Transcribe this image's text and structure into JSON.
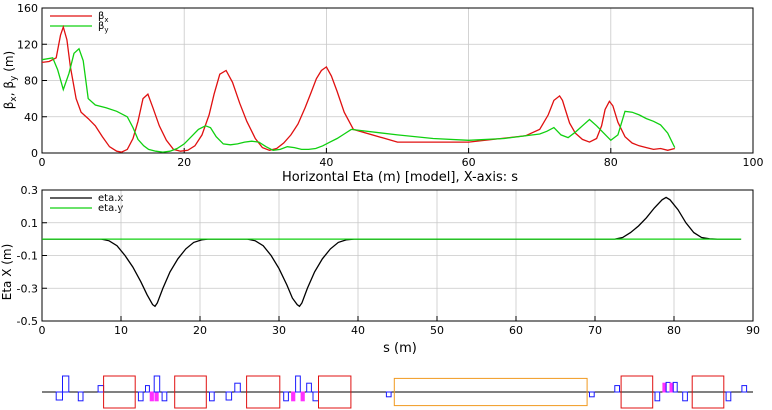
{
  "chart_data": [
    {
      "type": "line",
      "title": "",
      "xlabel": "",
      "ylabel": "βx, βy (m)",
      "ylabel_parts": [
        "β",
        "x",
        ", β",
        "y",
        "  (m)"
      ],
      "xlim": [
        0,
        100
      ],
      "ylim": [
        0,
        160
      ],
      "xticks": [
        0,
        20,
        40,
        60,
        80,
        100
      ],
      "yticks": [
        0,
        40,
        80,
        120,
        160
      ],
      "grid": true,
      "legend": "top-left",
      "series": [
        {
          "name": "βx",
          "name_parts": [
            "β",
            "x"
          ],
          "color": "#e01010",
          "x": [
            0,
            1,
            2,
            2.6,
            3,
            3.5,
            4,
            4.8,
            5.5,
            6.5,
            7.5,
            8.5,
            9.5,
            10.5,
            11.2,
            12,
            12.8,
            13.5,
            14.2,
            14.9,
            15.6,
            16.5,
            17.5,
            18.5,
            19.5,
            20.5,
            21.5,
            22.5,
            23.5,
            24.2,
            25,
            25.9,
            26.8,
            27.8,
            28.8,
            30,
            31,
            32,
            33,
            34,
            35,
            36,
            37,
            37.8,
            38.6,
            39.3,
            40,
            40.7,
            41.5,
            42.5,
            43.8,
            50,
            60,
            68,
            70,
            71.2,
            72,
            72.8,
            73.2,
            73.6,
            74.2,
            75,
            76,
            77,
            78,
            78.7,
            79.2,
            79.8,
            80.3,
            81,
            82,
            83,
            84,
            85,
            86,
            87,
            88,
            89
          ],
          "y": [
            100,
            101,
            105,
            130,
            139,
            125,
            95,
            60,
            45,
            38,
            30,
            18,
            7,
            2,
            1,
            4,
            16,
            35,
            60,
            65,
            50,
            30,
            14,
            4,
            2,
            3,
            8,
            20,
            42,
            65,
            87,
            91,
            78,
            55,
            35,
            16,
            6,
            3,
            5,
            11,
            20,
            32,
            50,
            66,
            82,
            91,
            95,
            85,
            68,
            45,
            26,
            12,
            12,
            19,
            26,
            42,
            58,
            63,
            58,
            48,
            33,
            22,
            15,
            12,
            16,
            30,
            48,
            57,
            52,
            34,
            18,
            11,
            8,
            6,
            4,
            5,
            3,
            5
          ]
        },
        {
          "name": "βy",
          "name_parts": [
            "β",
            "y"
          ],
          "color": "#10d010",
          "x": [
            0,
            1.5,
            2.2,
            3,
            3.8,
            4.5,
            5.2,
            5.8,
            6.5,
            7.5,
            9,
            10.5,
            12,
            12.8,
            13.5,
            14.3,
            15,
            16,
            17,
            18,
            19,
            20,
            21,
            22,
            23,
            23.7,
            24.5,
            25.5,
            26.5,
            27.5,
            28.5,
            29.5,
            30.5,
            31.5,
            32.5,
            33.5,
            34.5,
            35.5,
            36.5,
            37.5,
            38.5,
            39.5,
            40.5,
            41.5,
            42.5,
            43.5,
            50,
            55,
            60,
            65,
            70,
            71,
            72,
            73,
            74,
            75,
            76,
            77,
            78,
            79,
            80,
            81,
            82,
            83,
            84,
            85,
            86,
            87,
            88,
            89
          ],
          "y": [
            103,
            105,
            92,
            70,
            88,
            110,
            115,
            102,
            60,
            53,
            50,
            46,
            40,
            28,
            15,
            8,
            4,
            2,
            1,
            2,
            5,
            10,
            18,
            26,
            30,
            28,
            18,
            10,
            9,
            10,
            12,
            13,
            12,
            7,
            3,
            4,
            7,
            6,
            4,
            4,
            5,
            8,
            12,
            16,
            21,
            26,
            20,
            16,
            14,
            16,
            21,
            24,
            28,
            20,
            17,
            23,
            30,
            37,
            30,
            22,
            14,
            20,
            46,
            45,
            42,
            38,
            35,
            31,
            22,
            6
          ]
        }
      ]
    },
    {
      "type": "line",
      "title": "Horizontal Eta (m) [model],  X-axis: s",
      "xlabel": "s  (m)",
      "ylabel": "Eta X  (m)",
      "xlim": [
        0,
        90
      ],
      "ylim": [
        -0.5,
        0.3
      ],
      "xticks": [
        0,
        10,
        20,
        30,
        40,
        50,
        60,
        70,
        80,
        90
      ],
      "yticks": [
        -0.5,
        -0.3,
        -0.1,
        0.1,
        0.3
      ],
      "ytick_labels": [
        "-0.5",
        "-0.3",
        "-0.1",
        "0.1",
        "0.3"
      ],
      "grid": true,
      "legend": "top-left",
      "series": [
        {
          "name": "eta.x",
          "color": "#000000",
          "x": [
            0,
            7.5,
            8.5,
            9.5,
            10.5,
            11.5,
            12.5,
            13.3,
            14,
            14.3,
            14.6,
            15.3,
            16.2,
            17.2,
            18.2,
            19.2,
            20.2,
            21,
            26,
            27,
            28,
            29,
            30,
            31,
            31.7,
            32.3,
            32.6,
            32.9,
            33.6,
            34.5,
            35.5,
            36.5,
            37.5,
            38.5,
            39.5,
            72.5,
            73.5,
            74.5,
            75.5,
            76.5,
            77.5,
            78.5,
            79,
            79.5,
            80.5,
            81.5,
            82.5,
            83.5,
            84.5,
            85.5,
            88.5
          ],
          "y": [
            0,
            0,
            -0.01,
            -0.04,
            -0.1,
            -0.17,
            -0.26,
            -0.34,
            -0.4,
            -0.41,
            -0.39,
            -0.3,
            -0.2,
            -0.12,
            -0.06,
            -0.02,
            -0.005,
            0,
            0,
            -0.01,
            -0.04,
            -0.1,
            -0.18,
            -0.28,
            -0.36,
            -0.4,
            -0.41,
            -0.39,
            -0.3,
            -0.2,
            -0.12,
            -0.06,
            -0.02,
            -0.005,
            0,
            0,
            0.01,
            0.04,
            0.08,
            0.13,
            0.19,
            0.24,
            0.255,
            0.24,
            0.18,
            0.1,
            0.04,
            0.01,
            0.002,
            0,
            0
          ]
        },
        {
          "name": "eta.y",
          "color": "#10d010",
          "x": [
            0,
            88.5
          ],
          "y": [
            0,
            0
          ]
        }
      ]
    }
  ],
  "lattice": {
    "s_max": 90,
    "elements": [
      {
        "kind": "quad",
        "s0": 1.8,
        "s1": 2.6,
        "dir": -1,
        "h": 0.5,
        "color": "#1a1aff"
      },
      {
        "kind": "quad",
        "s0": 2.6,
        "s1": 3.4,
        "dir": 1,
        "h": 1,
        "color": "#1a1aff"
      },
      {
        "kind": "quad",
        "s0": 4.6,
        "s1": 5.2,
        "dir": -1,
        "h": 0.55,
        "color": "#1a1aff"
      },
      {
        "kind": "quad",
        "s0": 7.1,
        "s1": 7.8,
        "dir": 1,
        "h": 0.4,
        "color": "#1a1aff"
      },
      {
        "kind": "bend",
        "s0": 7.8,
        "s1": 11.8,
        "dir": 0,
        "h": 1,
        "color": "#e01010"
      },
      {
        "kind": "quad",
        "s0": 12.2,
        "s1": 12.8,
        "dir": -1,
        "h": 0.55,
        "color": "#1a1aff"
      },
      {
        "kind": "quad",
        "s0": 13.1,
        "s1": 13.6,
        "dir": 1,
        "h": 0.4,
        "color": "#1a1aff"
      },
      {
        "kind": "sext",
        "s0": 13.7,
        "s1": 14.1,
        "dir": -1,
        "h": 0.55,
        "color": "#ff30ff"
      },
      {
        "kind": "sext",
        "s0": 14.3,
        "s1": 14.7,
        "dir": -1,
        "h": 0.55,
        "color": "#ff30ff"
      },
      {
        "kind": "quad",
        "s0": 14.2,
        "s1": 14.9,
        "dir": 1,
        "h": 1,
        "color": "#1a1aff"
      },
      {
        "kind": "quad",
        "s0": 15.2,
        "s1": 15.8,
        "dir": -1,
        "h": 0.55,
        "color": "#1a1aff"
      },
      {
        "kind": "bend",
        "s0": 16.8,
        "s1": 20.8,
        "dir": 0,
        "h": 1,
        "color": "#e01010"
      },
      {
        "kind": "quad",
        "s0": 21.2,
        "s1": 21.8,
        "dir": -1,
        "h": 0.55,
        "color": "#1a1aff"
      },
      {
        "kind": "quad",
        "s0": 23.3,
        "s1": 24,
        "dir": -1,
        "h": 0.5,
        "color": "#1a1aff"
      },
      {
        "kind": "quad",
        "s0": 24.4,
        "s1": 25.1,
        "dir": 1,
        "h": 0.55,
        "color": "#1a1aff"
      },
      {
        "kind": "bend",
        "s0": 25.9,
        "s1": 30.1,
        "dir": 0,
        "h": 1,
        "color": "#e01010"
      },
      {
        "kind": "quad",
        "s0": 30.6,
        "s1": 31.2,
        "dir": -1,
        "h": 0.55,
        "color": "#1a1aff"
      },
      {
        "kind": "sext",
        "s0": 31.6,
        "s1": 32,
        "dir": -1,
        "h": 0.55,
        "color": "#ff30ff"
      },
      {
        "kind": "quad",
        "s0": 32.1,
        "s1": 32.7,
        "dir": 1,
        "h": 1,
        "color": "#1a1aff"
      },
      {
        "kind": "sext",
        "s0": 32.8,
        "s1": 33.2,
        "dir": -1,
        "h": 0.55,
        "color": "#ff30ff"
      },
      {
        "kind": "quad",
        "s0": 33.5,
        "s1": 34.1,
        "dir": 1,
        "h": 0.55,
        "color": "#1a1aff"
      },
      {
        "kind": "quad",
        "s0": 34.3,
        "s1": 35,
        "dir": -1,
        "h": 0.55,
        "color": "#1a1aff"
      },
      {
        "kind": "bend",
        "s0": 35,
        "s1": 39.1,
        "dir": 0,
        "h": 1,
        "color": "#e01010"
      },
      {
        "kind": "quad",
        "s0": 43.6,
        "s1": 44.2,
        "dir": -1,
        "h": 0.3,
        "color": "#1a1aff"
      },
      {
        "kind": "solenoid",
        "s0": 44.6,
        "s1": 69,
        "dir": 0,
        "h": 0.85,
        "color": "#f09a20"
      },
      {
        "kind": "quad",
        "s0": 69.3,
        "s1": 69.9,
        "dir": -1,
        "h": 0.3,
        "color": "#1a1aff"
      },
      {
        "kind": "quad",
        "s0": 72.5,
        "s1": 73.1,
        "dir": 1,
        "h": 0.4,
        "color": "#1a1aff"
      },
      {
        "kind": "bend",
        "s0": 73.3,
        "s1": 77.3,
        "dir": 0,
        "h": 1,
        "color": "#e01010"
      },
      {
        "kind": "quad",
        "s0": 77.6,
        "s1": 78.2,
        "dir": -1,
        "h": 0.55,
        "color": "#1a1aff"
      },
      {
        "kind": "sext",
        "s0": 78.6,
        "s1": 79,
        "dir": 1,
        "h": 0.55,
        "color": "#ff30ff"
      },
      {
        "kind": "quad",
        "s0": 79,
        "s1": 79.5,
        "dir": 1,
        "h": 0.6,
        "color": "#1a1aff"
      },
      {
        "kind": "sext",
        "s0": 79.5,
        "s1": 79.9,
        "dir": 1,
        "h": 0.55,
        "color": "#ff30ff"
      },
      {
        "kind": "quad",
        "s0": 79.9,
        "s1": 80.4,
        "dir": 1,
        "h": 0.6,
        "color": "#1a1aff"
      },
      {
        "kind": "quad",
        "s0": 81.1,
        "s1": 81.7,
        "dir": -1,
        "h": 0.55,
        "color": "#1a1aff"
      },
      {
        "kind": "bend",
        "s0": 82.3,
        "s1": 86.3,
        "dir": 0,
        "h": 1,
        "color": "#e01010"
      },
      {
        "kind": "quad",
        "s0": 86.6,
        "s1": 87.2,
        "dir": -1,
        "h": 0.55,
        "color": "#1a1aff"
      },
      {
        "kind": "quad",
        "s0": 88.6,
        "s1": 89.2,
        "dir": 1,
        "h": 0.4,
        "color": "#1a1aff"
      }
    ]
  }
}
